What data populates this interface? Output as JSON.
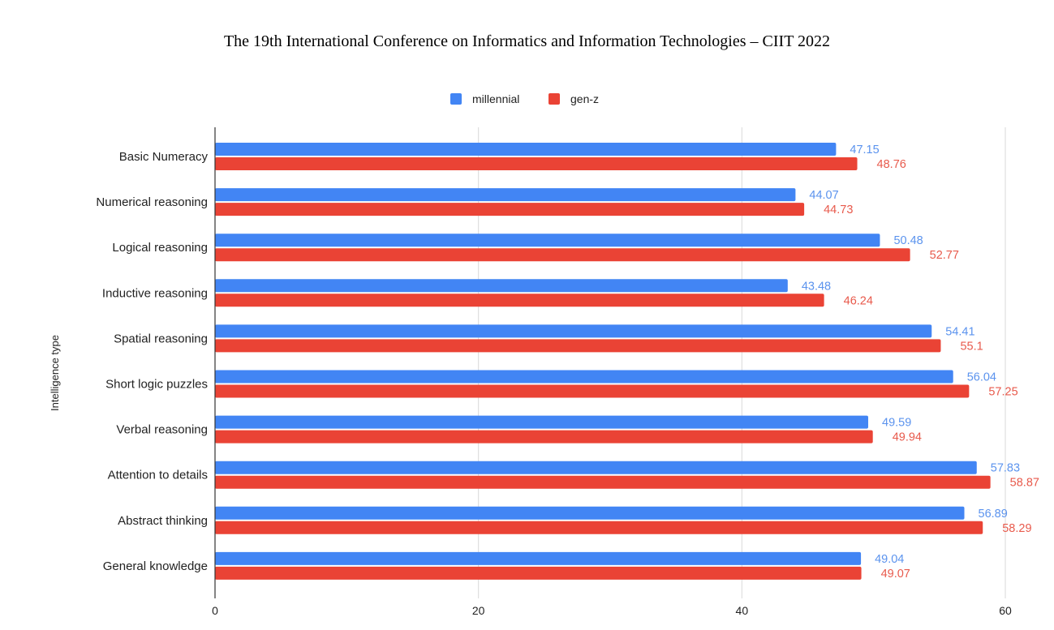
{
  "header": {
    "text": "The 19th International Conference on Informatics and Information Technologies – CIIT 2022"
  },
  "chart_data": {
    "type": "bar",
    "orientation": "horizontal",
    "title": "",
    "ylabel": "Intelligence type",
    "xlabel": "",
    "xlim": [
      0,
      60
    ],
    "xticks": [
      0,
      20,
      40,
      60
    ],
    "grid": true,
    "legend_position": "top-center",
    "categories": [
      "Basic Numeracy",
      "Numerical reasoning",
      "Logical reasoning",
      "Inductive reasoning",
      "Spatial reasoning",
      "Short logic puzzles",
      "Verbal reasoning",
      "Attention to details",
      "Abstract thinking",
      "General knowledge"
    ],
    "series": [
      {
        "name": "millennial",
        "color": "#4285F4",
        "label_color": "#5b93ee",
        "values": [
          47.15,
          44.07,
          50.48,
          43.48,
          54.41,
          56.04,
          49.59,
          57.83,
          56.89,
          49.04
        ]
      },
      {
        "name": "gen-z",
        "color": "#EA4335",
        "label_color": "#e85a4c",
        "values": [
          48.76,
          44.73,
          52.77,
          46.24,
          55.1,
          57.25,
          49.94,
          58.87,
          58.29,
          49.07
        ]
      }
    ]
  }
}
